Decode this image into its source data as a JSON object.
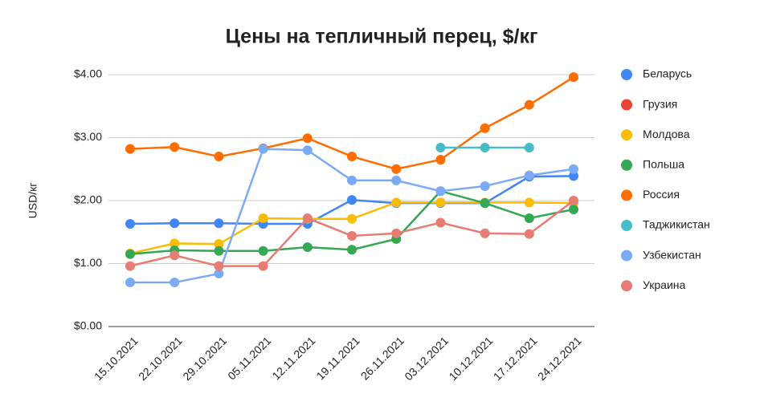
{
  "chart_data": {
    "type": "line",
    "title": "Цены на тепличный перец, $/кг",
    "y_label": "USD/кг",
    "categories": [
      "15.10.2021",
      "22.10.2021",
      "29.10.2021",
      "05.11.2021",
      "12.11.2021",
      "19.11.2021",
      "26.11.2021",
      "03.12.2021",
      "10.12.2021",
      "17.12.2021",
      "24.12.2021"
    ],
    "series": [
      {
        "name": "Беларусь",
        "color": "#4285f4",
        "values": [
          1.63,
          1.64,
          1.64,
          1.63,
          1.63,
          2.01,
          1.96,
          1.96,
          1.96,
          2.38,
          2.39
        ]
      },
      {
        "name": "Грузия",
        "color": "#ea4335",
        "values": [
          null,
          null,
          null,
          null,
          null,
          null,
          null,
          null,
          null,
          null,
          null
        ]
      },
      {
        "name": "Молдова",
        "color": "#fbbc04",
        "values": [
          1.16,
          1.32,
          1.31,
          1.72,
          1.71,
          1.71,
          1.97,
          1.97,
          1.97,
          1.97,
          1.96
        ]
      },
      {
        "name": "Польша",
        "color": "#34a853",
        "values": [
          1.15,
          1.21,
          1.2,
          1.2,
          1.26,
          1.22,
          1.39,
          2.15,
          1.96,
          1.72,
          1.86
        ]
      },
      {
        "name": "Россия",
        "color": "#ff6d01",
        "values": [
          2.82,
          2.85,
          2.7,
          2.83,
          2.99,
          2.7,
          2.5,
          2.65,
          3.15,
          3.52,
          3.96
        ]
      },
      {
        "name": "Таджикистан",
        "color": "#46bdc6",
        "values": [
          null,
          null,
          null,
          null,
          null,
          null,
          null,
          2.84,
          2.84,
          2.84,
          null
        ]
      },
      {
        "name": "Узбекистан",
        "color": "#7baaf7",
        "values": [
          0.7,
          0.7,
          0.84,
          2.82,
          2.8,
          2.32,
          2.32,
          2.15,
          2.23,
          2.4,
          2.5
        ]
      },
      {
        "name": "Украина",
        "color": "#e67c73",
        "values": [
          0.96,
          1.13,
          0.96,
          0.96,
          1.72,
          1.44,
          1.48,
          1.65,
          1.48,
          1.47,
          2.0
        ]
      }
    ],
    "ylim": [
      0,
      4
    ],
    "yticks": [
      {
        "value": 0,
        "label": "$0.00"
      },
      {
        "value": 1,
        "label": "$1.00"
      },
      {
        "value": 2,
        "label": "$2.00"
      },
      {
        "value": 3,
        "label": "$3.00"
      },
      {
        "value": 4,
        "label": "$4.00"
      }
    ],
    "grid": true,
    "legend": "right"
  }
}
